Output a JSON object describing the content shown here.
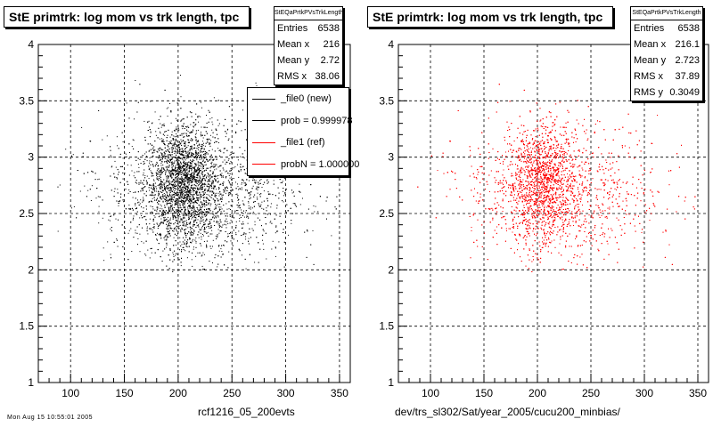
{
  "chart_data": [
    {
      "type": "scatter",
      "title": "StE primtrk: log mom vs trk length, tpc",
      "xlabel": "rcf1216_05_200evts",
      "ylabel": "",
      "xlim": [
        70,
        360
      ],
      "ylim": [
        1,
        4
      ],
      "x_ticks": [
        100,
        150,
        200,
        250,
        300,
        350
      ],
      "y_ticks": [
        1,
        1.5,
        2,
        2.5,
        3,
        3.5,
        4
      ],
      "grid": true,
      "marker_color": "#000000",
      "stats": {
        "name": "StEQaPrtkPVsTrkLength",
        "rows": [
          {
            "label": "Entries",
            "value": "6538"
          },
          {
            "label": "Mean x",
            "value": "216"
          },
          {
            "label": "Mean y",
            "value": "2.72"
          },
          {
            "label": "RMS x",
            "value": "38.06"
          }
        ]
      },
      "legend": {
        "placement": "right",
        "entries": [
          {
            "label": "_file0 (new)",
            "color": "#000000"
          },
          {
            "label": "prob = 0.999978",
            "color": "#000000"
          },
          {
            "label": "_file1 (ref)",
            "color": "#ff0000"
          },
          {
            "label": "probN = 1.000000",
            "color": "#ff0000"
          }
        ]
      }
    },
    {
      "type": "scatter",
      "title": "StE primtrk: log mom vs trk length, tpc",
      "xlabel": "dev/trs_sl302/Sat/year_2005/cucu200_minbias/",
      "ylabel": "",
      "xlim": [
        70,
        360
      ],
      "ylim": [
        1,
        4
      ],
      "x_ticks": [
        100,
        150,
        200,
        250,
        300,
        350
      ],
      "y_ticks": [
        1,
        1.5,
        2,
        2.5,
        3,
        3.5,
        4
      ],
      "grid": true,
      "marker_color": "#ff0000",
      "stats": {
        "name": "StEQaPrtkPVsTrkLength",
        "rows": [
          {
            "label": "Entries",
            "value": "6538"
          },
          {
            "label": "Mean x",
            "value": "216.1"
          },
          {
            "label": "Mean y",
            "value": "2.723"
          },
          {
            "label": "RMS x",
            "value": "37.89"
          },
          {
            "label": "RMS y",
            "value": "0.3049"
          }
        ]
      }
    }
  ],
  "footer": "Mon Aug 15 10:55:01 2005"
}
